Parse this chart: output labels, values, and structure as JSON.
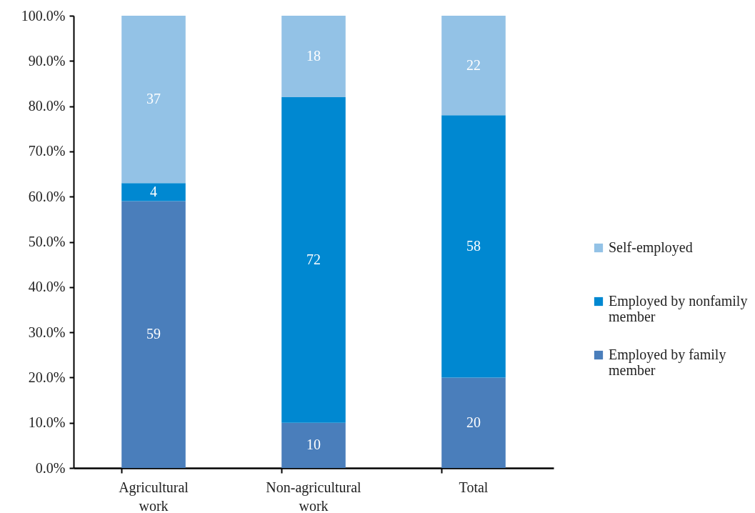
{
  "chart_data": {
    "type": "bar",
    "stacked": true,
    "categories": [
      "Agricultural work",
      "Non-agricultural work",
      "Total"
    ],
    "series": [
      {
        "name": "Employed by family member",
        "color": "#4a7ebb",
        "values": [
          59,
          10,
          20
        ]
      },
      {
        "name": "Employed by nonfamily member",
        "color": "#0088d1",
        "values": [
          4,
          72,
          58
        ]
      },
      {
        "name": "Self-employed",
        "color": "#93c2e6",
        "values": [
          37,
          18,
          22
        ]
      }
    ],
    "ylim": [
      0,
      100
    ],
    "yticks": [
      {
        "value": 0,
        "label": "0.0%"
      },
      {
        "value": 10,
        "label": "10.0%"
      },
      {
        "value": 20,
        "label": "20.0%"
      },
      {
        "value": 30,
        "label": "30.0%"
      },
      {
        "value": 40,
        "label": "40.0%"
      },
      {
        "value": 50,
        "label": "50.0%"
      },
      {
        "value": 60,
        "label": "60.0%"
      },
      {
        "value": 70,
        "label": "70.0%"
      },
      {
        "value": 80,
        "label": "80.0%"
      },
      {
        "value": 90,
        "label": "90.0%"
      },
      {
        "value": 100,
        "label": "100.0%"
      }
    ],
    "data_labels": true,
    "legend": "right"
  }
}
